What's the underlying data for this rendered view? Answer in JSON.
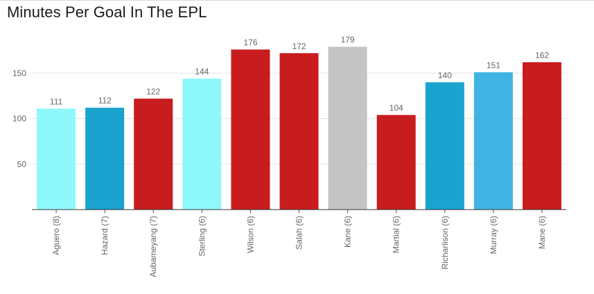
{
  "chart_data": {
    "type": "bar",
    "title": "Minutes Per Goal In The EPL",
    "xlabel": "",
    "ylabel": "",
    "categories": [
      "Aguero (8)",
      "Hazard (7)",
      "Aubameyang (7)",
      "Sterling (6)",
      "Wilson (6)",
      "Salah (6)",
      "Kane (6)",
      "Martial (6)",
      "Richarlison (6)",
      "Murray (6)",
      "Mane (6)"
    ],
    "values": [
      111,
      112,
      122,
      144,
      176,
      172,
      179,
      104,
      140,
      151,
      162
    ],
    "colors": [
      "#8ef8fd",
      "#1aa3cf",
      "#c81d1f",
      "#8ef8fd",
      "#c81d1f",
      "#c81d1f",
      "#c4c4c4",
      "#c81d1f",
      "#1aa3cf",
      "#3fb4e2",
      "#c81d1f"
    ],
    "yticks": [
      50,
      100,
      150
    ],
    "ylim": [
      0,
      195
    ],
    "grid": true,
    "legend": "none"
  }
}
